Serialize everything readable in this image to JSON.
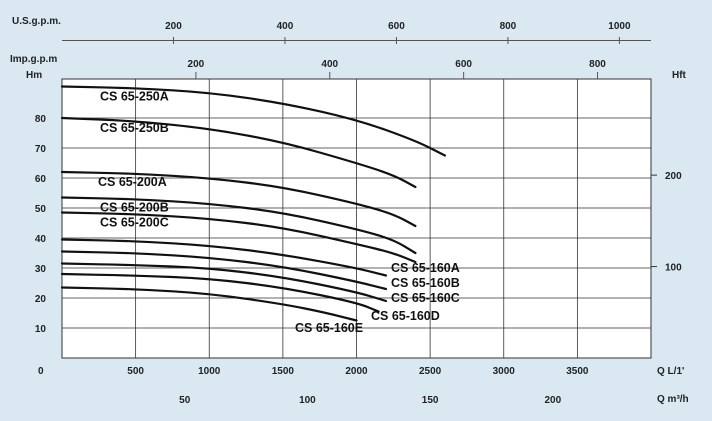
{
  "chart_data": {
    "type": "line",
    "axes": {
      "top1": {
        "label": "U.S.g.p.m.",
        "ticks": [
          200,
          400,
          600,
          800,
          1000
        ]
      },
      "top2": {
        "label": "Imp.g.p.m",
        "ticks": [
          200,
          400,
          600,
          800
        ]
      },
      "left": {
        "label": "Hm",
        "ticks": [
          10,
          20,
          30,
          40,
          50,
          60,
          70,
          80
        ],
        "zero": "0",
        "ylim": [
          0,
          93
        ]
      },
      "right": {
        "label": "Hft",
        "ticks": [
          100,
          200
        ]
      },
      "bottom1": {
        "label": "Q L/1'",
        "ticks": [
          500,
          1000,
          1500,
          2000,
          2500,
          3000,
          3500
        ],
        "xlim": [
          0,
          4000
        ]
      },
      "bottom2": {
        "label": "Q m³/h",
        "ticks": [
          50,
          100,
          150,
          200
        ]
      }
    },
    "grid": true,
    "series": [
      {
        "name": "CS 65-250A",
        "points": [
          [
            0,
            90.5
          ],
          [
            500,
            90
          ],
          [
            1000,
            88.5
          ],
          [
            1500,
            85
          ],
          [
            2000,
            79.5
          ],
          [
            2400,
            72.5
          ],
          [
            2600,
            67.5
          ]
        ]
      },
      {
        "name": "CS 65-250B",
        "points": [
          [
            0,
            80
          ],
          [
            500,
            79
          ],
          [
            1000,
            76.5
          ],
          [
            1500,
            72
          ],
          [
            2000,
            65
          ],
          [
            2250,
            61
          ],
          [
            2400,
            57
          ]
        ]
      },
      {
        "name": "CS 65-200A",
        "points": [
          [
            0,
            62
          ],
          [
            500,
            61.5
          ],
          [
            1000,
            60
          ],
          [
            1500,
            57
          ],
          [
            2000,
            51.5
          ],
          [
            2250,
            48
          ],
          [
            2400,
            44
          ]
        ]
      },
      {
        "name": "CS 65-200B",
        "points": [
          [
            0,
            53.5
          ],
          [
            500,
            53
          ],
          [
            1000,
            51.5
          ],
          [
            1500,
            48.5
          ],
          [
            2000,
            43
          ],
          [
            2250,
            39.5
          ],
          [
            2400,
            35
          ]
        ]
      },
      {
        "name": "CS 65-200C",
        "points": [
          [
            0,
            48.5
          ],
          [
            500,
            48
          ],
          [
            1000,
            46.5
          ],
          [
            1500,
            43.5
          ],
          [
            2000,
            38
          ],
          [
            2250,
            35
          ],
          [
            2400,
            32
          ]
        ]
      },
      {
        "name": "CS 65-160A",
        "points": [
          [
            0,
            39.5
          ],
          [
            500,
            39
          ],
          [
            1000,
            37.5
          ],
          [
            1500,
            34.5
          ],
          [
            2000,
            30
          ],
          [
            2200,
            27.5
          ]
        ]
      },
      {
        "name": "CS 65-160B",
        "points": [
          [
            0,
            35.5
          ],
          [
            500,
            35
          ],
          [
            1000,
            33.5
          ],
          [
            1500,
            30.5
          ],
          [
            2000,
            25.5
          ],
          [
            2200,
            23
          ]
        ]
      },
      {
        "name": "CS 65-160C",
        "points": [
          [
            0,
            31.5
          ],
          [
            500,
            31
          ],
          [
            1000,
            30
          ],
          [
            1500,
            27
          ],
          [
            2000,
            22
          ],
          [
            2200,
            19
          ]
        ]
      },
      {
        "name": "CS 65-160D",
        "points": [
          [
            0,
            28
          ],
          [
            500,
            27.5
          ],
          [
            1000,
            26.5
          ],
          [
            1500,
            23.5
          ],
          [
            2000,
            18.5
          ],
          [
            2150,
            15.5
          ]
        ]
      },
      {
        "name": "CS 65-160E",
        "points": [
          [
            0,
            23.5
          ],
          [
            500,
            23
          ],
          [
            1000,
            21.5
          ],
          [
            1500,
            18
          ],
          [
            1800,
            15
          ],
          [
            2000,
            12.5
          ]
        ]
      }
    ]
  }
}
